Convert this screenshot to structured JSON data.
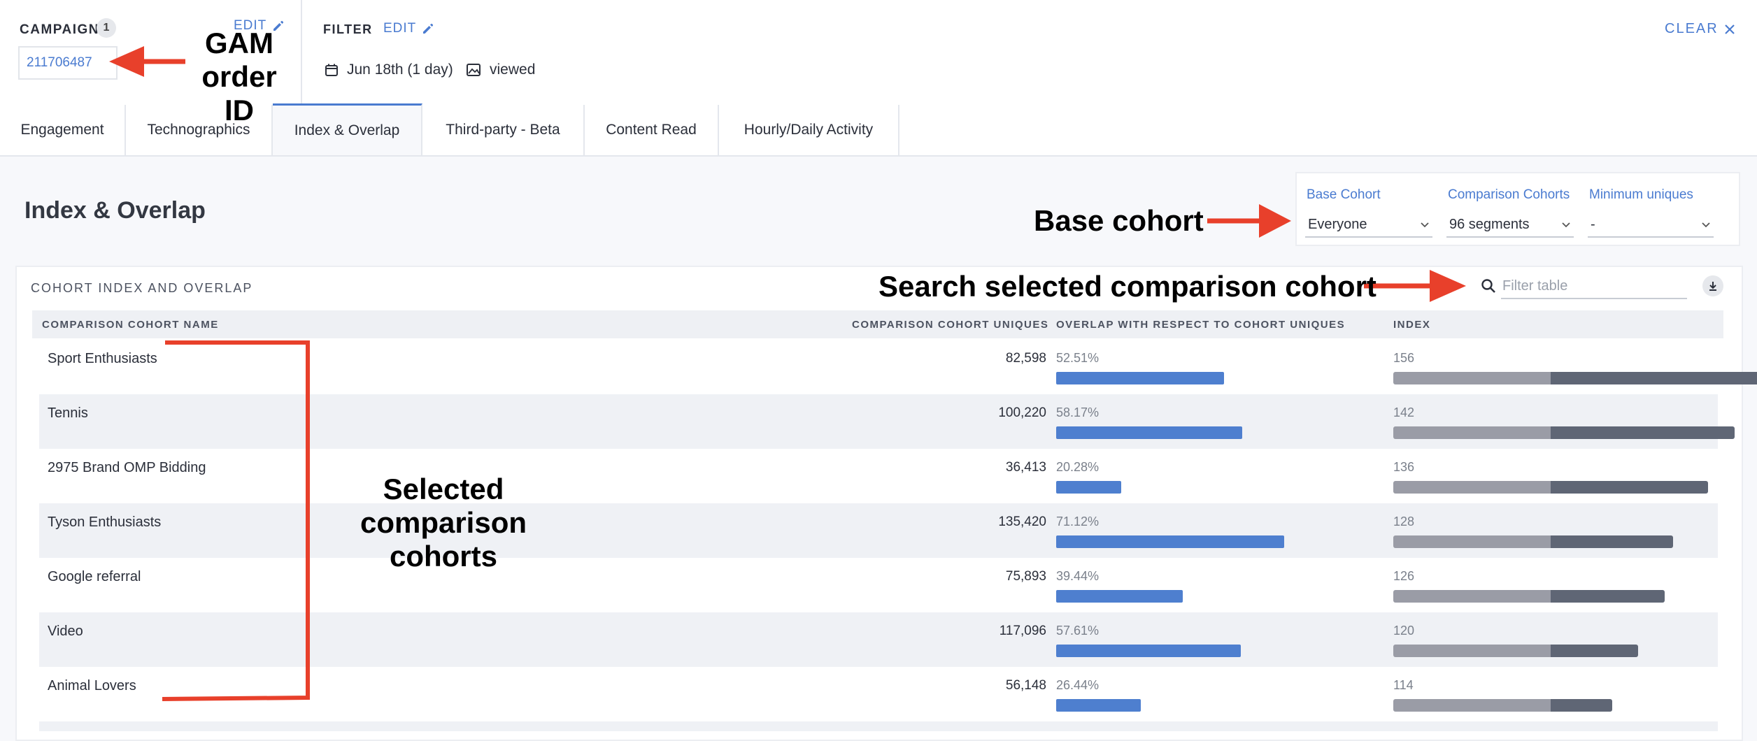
{
  "header": {
    "campaign_label": "CAMPAIGN",
    "campaign_count": "1",
    "campaign_edit": "EDIT",
    "campaign_id": "211706487",
    "filter_label": "FILTER",
    "filter_edit": "EDIT",
    "date_range": "Jun 18th (1 day)",
    "view_filter": "viewed",
    "clear_label": "CLEAR"
  },
  "tabs": [
    {
      "label": "Engagement"
    },
    {
      "label": "Technographics"
    },
    {
      "label": "Index & Overlap",
      "active": true
    },
    {
      "label": "Third-party - Beta"
    },
    {
      "label": "Content Read"
    },
    {
      "label": "Hourly/Daily Activity"
    }
  ],
  "page_title": "Index & Overlap",
  "controls": {
    "base_cohort": {
      "label": "Base Cohort",
      "value": "Everyone"
    },
    "comparison_cohorts": {
      "label": "Comparison Cohorts",
      "value": "96 segments"
    },
    "minimum_uniques": {
      "label": "Minimum uniques",
      "value": "-"
    }
  },
  "table": {
    "title": "COHORT INDEX AND OVERLAP",
    "filter_placeholder": "Filter table",
    "columns": [
      "COMPARISON COHORT NAME",
      "COMPARISON COHORT UNIQUES",
      "OVERLAP WITH RESPECT TO COHORT UNIQUES",
      "INDEX"
    ],
    "rows": [
      {
        "name": "Sport Enthusiasts",
        "uniques": "82,598",
        "overlap": "52.51%",
        "overlap_value": 52.51,
        "index": "156",
        "index_value": 156
      },
      {
        "name": "Tennis",
        "uniques": "100,220",
        "overlap": "58.17%",
        "overlap_value": 58.17,
        "index": "142",
        "index_value": 142
      },
      {
        "name": "2975 Brand OMP Bidding",
        "uniques": "36,413",
        "overlap": "20.28%",
        "overlap_value": 20.28,
        "index": "136",
        "index_value": 136
      },
      {
        "name": "Tyson Enthusiasts",
        "uniques": "135,420",
        "overlap": "71.12%",
        "overlap_value": 71.12,
        "index": "128",
        "index_value": 128
      },
      {
        "name": "Google referral",
        "uniques": "75,893",
        "overlap": "39.44%",
        "overlap_value": 39.44,
        "index": "126",
        "index_value": 126
      },
      {
        "name": "Video",
        "uniques": "117,096",
        "overlap": "57.61%",
        "overlap_value": 57.61,
        "index": "120",
        "index_value": 120
      },
      {
        "name": "Animal Lovers",
        "uniques": "56,148",
        "overlap": "26.44%",
        "overlap_value": 26.44,
        "index": "114",
        "index_value": 114
      }
    ]
  },
  "annotations": {
    "gam_line1": "GAM",
    "gam_line2": "order ID",
    "base_cohort": "Base cohort",
    "search": "Search selected comparison cohort",
    "selected_line1": "Selected",
    "selected_line2": "comparison",
    "selected_line3": "cohorts"
  },
  "colors": {
    "accent": "#4a7bd0",
    "overlap_bar": "#4e7fcf",
    "index_base": "#9a9ca6",
    "index_over": "#5f6675",
    "annotation_arrow": "#e8402b"
  }
}
